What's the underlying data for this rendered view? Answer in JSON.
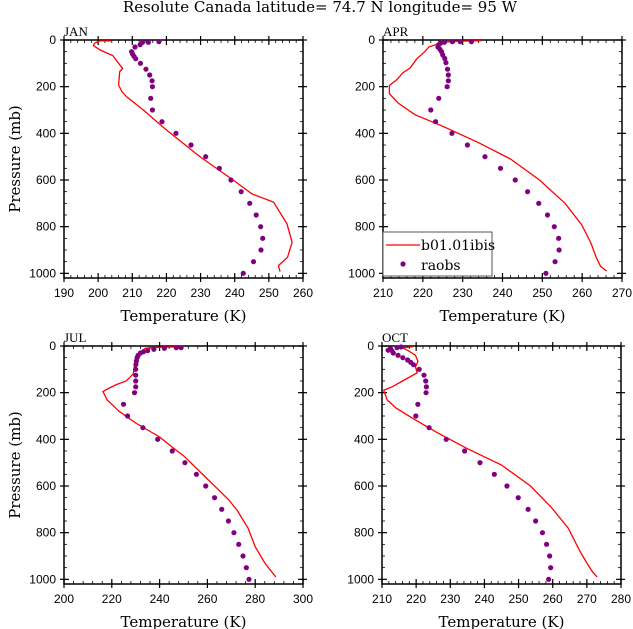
{
  "title": "Resolute Canada  latitude= 74.7 N longitude= 95 W",
  "colors": {
    "model": "#ff0000",
    "obs": "#800080"
  },
  "chart_data": [
    {
      "type": "line",
      "panel_title": "JAN",
      "xlabel": "Temperature (K)",
      "ylabel": "Pressure (mb)",
      "xlim": [
        190,
        260
      ],
      "xticks": [
        190,
        200,
        210,
        220,
        230,
        240,
        250,
        260
      ],
      "ylim": [
        0,
        1020
      ],
      "yticks": [
        0,
        200,
        400,
        600,
        800,
        1000
      ],
      "y_inverted": true,
      "series": [
        {
          "name": "b01.01ibis",
          "style": "line",
          "points": [
            [
              203.8,
              4
            ],
            [
              200.4,
              4
            ],
            [
              198.9,
              14
            ],
            [
              198.6,
              24
            ],
            [
              200.6,
              43
            ],
            [
              202.3,
              54
            ],
            [
              204.3,
              67
            ],
            [
              206,
              100
            ],
            [
              207.2,
              122
            ],
            [
              206.3,
              136
            ],
            [
              206,
              193
            ],
            [
              207,
              222
            ],
            [
              208.4,
              244
            ],
            [
              213.3,
              301
            ],
            [
              220.1,
              387
            ],
            [
              229.9,
              501
            ],
            [
              239.7,
              602
            ],
            [
              245,
              659
            ],
            [
              251.4,
              695
            ],
            [
              255.3,
              788
            ],
            [
              256.8,
              867
            ],
            [
              255.5,
              931
            ],
            [
              252.8,
              967
            ],
            [
              253.3,
              993
            ]
          ]
        },
        {
          "name": "raobs",
          "style": "markers",
          "points": [
            [
              217.8,
              7
            ],
            [
              214.7,
              10
            ],
            [
              213,
              10
            ],
            [
              212.3,
              20
            ],
            [
              210.8,
              30
            ],
            [
              209.8,
              50
            ],
            [
              210.1,
              60
            ],
            [
              210.5,
              70
            ],
            [
              211,
              80
            ],
            [
              212.4,
              100
            ],
            [
              214,
              125
            ],
            [
              215.1,
              150
            ],
            [
              215.8,
              175
            ],
            [
              215.9,
              200
            ],
            [
              215.4,
              250
            ],
            [
              215.9,
              300
            ],
            [
              218.7,
              350
            ],
            [
              222.8,
              400
            ],
            [
              227.2,
              450
            ],
            [
              231.5,
              500
            ],
            [
              235.5,
              550
            ],
            [
              238.9,
              600
            ],
            [
              241.9,
              650
            ],
            [
              244.4,
              700
            ],
            [
              246.3,
              750
            ],
            [
              247.6,
              800
            ],
            [
              248.2,
              850
            ],
            [
              247.7,
              900
            ],
            [
              245.5,
              950
            ],
            [
              242.5,
              1000
            ]
          ]
        }
      ]
    },
    {
      "type": "line",
      "panel_title": "APR",
      "xlabel": "Temperature (K)",
      "ylabel": "",
      "xlim": [
        210,
        270
      ],
      "xticks": [
        210,
        220,
        230,
        240,
        250,
        260,
        270
      ],
      "ylim": [
        0,
        1020
      ],
      "yticks": [
        0,
        200,
        400,
        600,
        800,
        1000
      ],
      "y_inverted": true,
      "legend": {
        "placement": "bottom-left",
        "entries": [
          "b01.01ibis",
          "raobs"
        ]
      },
      "series": [
        {
          "name": "b01.01ibis",
          "style": "line",
          "points": [
            [
              234.7,
              3
            ],
            [
              228,
              5
            ],
            [
              225,
              10
            ],
            [
              221.5,
              30
            ],
            [
              220.5,
              50
            ],
            [
              218.5,
              80
            ],
            [
              216.8,
              120
            ],
            [
              215,
              140
            ],
            [
              213.5,
              170
            ],
            [
              211.6,
              195
            ],
            [
              211.6,
              230
            ],
            [
              213.8,
              270
            ],
            [
              218,
              320
            ],
            [
              225,
              370
            ],
            [
              234,
              440
            ],
            [
              242,
              510
            ],
            [
              249.3,
              600
            ],
            [
              255.7,
              700
            ],
            [
              259.8,
              790
            ],
            [
              262.2,
              870
            ],
            [
              263.5,
              930
            ],
            [
              264.6,
              970
            ],
            [
              266.1,
              990
            ]
          ]
        },
        {
          "name": "raobs",
          "style": "markers",
          "points": [
            [
              232.2,
              7
            ],
            [
              229.4,
              7
            ],
            [
              227.4,
              7
            ],
            [
              225.4,
              10
            ],
            [
              224.4,
              14
            ],
            [
              224,
              20
            ],
            [
              223.8,
              30
            ],
            [
              224.3,
              40
            ],
            [
              224.7,
              50
            ],
            [
              225,
              64
            ],
            [
              225.5,
              79
            ],
            [
              225.8,
              97
            ],
            [
              226.2,
              125
            ],
            [
              226.4,
              150
            ],
            [
              226.4,
              175
            ],
            [
              226.1,
              200
            ],
            [
              224,
              250
            ],
            [
              222,
              300
            ],
            [
              223.2,
              350
            ],
            [
              227.3,
              400
            ],
            [
              231.2,
              450
            ],
            [
              235.6,
              500
            ],
            [
              239.5,
              550
            ],
            [
              243.2,
              600
            ],
            [
              246.3,
              650
            ],
            [
              249.1,
              700
            ],
            [
              251.3,
              750
            ],
            [
              253,
              800
            ],
            [
              254.1,
              850
            ],
            [
              254.2,
              900
            ],
            [
              253.2,
              950
            ],
            [
              250.9,
              1000
            ]
          ]
        }
      ]
    },
    {
      "type": "line",
      "panel_title": "JUL",
      "xlabel": "Temperature (K)",
      "ylabel": "Pressure (mb)",
      "xlim": [
        200,
        300
      ],
      "xticks": [
        200,
        220,
        240,
        260,
        280,
        300
      ],
      "ylim": [
        0,
        1020
      ],
      "yticks": [
        0,
        200,
        400,
        600,
        800,
        1000
      ],
      "y_inverted": true,
      "series": [
        {
          "name": "b01.01ibis",
          "style": "line",
          "points": [
            [
              250,
              3
            ],
            [
              240,
              5
            ],
            [
              234,
              10
            ],
            [
              231.5,
              30
            ],
            [
              230,
              60
            ],
            [
              229.5,
              80
            ],
            [
              229,
              120
            ],
            [
              226,
              150
            ],
            [
              222,
              165
            ],
            [
              219,
              180
            ],
            [
              216.3,
              195
            ],
            [
              218,
              230
            ],
            [
              223,
              280
            ],
            [
              230,
              330
            ],
            [
              240,
              390
            ],
            [
              245.5,
              435
            ],
            [
              250,
              470
            ],
            [
              254,
              510
            ],
            [
              260,
              570
            ],
            [
              264,
              610
            ],
            [
              269,
              660
            ],
            [
              272.5,
              705
            ],
            [
              277,
              780
            ],
            [
              280,
              860
            ],
            [
              284,
              930
            ],
            [
              288.6,
              990
            ]
          ]
        },
        {
          "name": "raobs",
          "style": "markers",
          "points": [
            [
              249,
              7
            ],
            [
              247,
              7
            ],
            [
              242,
              10
            ],
            [
              237.6,
              14
            ],
            [
              235,
              20
            ],
            [
              233.2,
              25
            ],
            [
              232,
              30
            ],
            [
              231,
              40
            ],
            [
              230.6,
              50
            ],
            [
              230.3,
              64
            ],
            [
              230.1,
              79
            ],
            [
              230,
              100
            ],
            [
              230,
              125
            ],
            [
              230,
              150
            ],
            [
              230,
              175
            ],
            [
              229.5,
              200
            ],
            [
              224.9,
              250
            ],
            [
              226.6,
              300
            ],
            [
              233,
              350
            ],
            [
              239.2,
              400
            ],
            [
              245.3,
              450
            ],
            [
              250.6,
              500
            ],
            [
              255.4,
              550
            ],
            [
              259.3,
              600
            ],
            [
              263,
              650
            ],
            [
              266,
              700
            ],
            [
              268.8,
              750
            ],
            [
              271.1,
              800
            ],
            [
              273.1,
              850
            ],
            [
              274.9,
              900
            ],
            [
              276.3,
              950
            ],
            [
              277.4,
              1000
            ]
          ]
        }
      ]
    },
    {
      "type": "line",
      "panel_title": "OCT",
      "xlabel": "Temperature (K)",
      "ylabel": "",
      "xlim": [
        210,
        280
      ],
      "xticks": [
        210,
        220,
        230,
        240,
        250,
        260,
        270,
        280
      ],
      "ylim": [
        0,
        1020
      ],
      "yticks": [
        0,
        200,
        400,
        600,
        800,
        1000
      ],
      "y_inverted": true,
      "series": [
        {
          "name": "b01.01ibis",
          "style": "line",
          "points": [
            [
              219,
              3
            ],
            [
              216,
              8
            ],
            [
              217.7,
              20
            ],
            [
              219.8,
              40
            ],
            [
              220.5,
              65
            ],
            [
              219.8,
              90
            ],
            [
              220.3,
              115
            ],
            [
              216,
              150
            ],
            [
              213,
              175
            ],
            [
              210.5,
              190
            ],
            [
              211.5,
              230
            ],
            [
              214,
              265
            ],
            [
              219,
              310
            ],
            [
              226,
              370
            ],
            [
              235,
              440
            ],
            [
              245,
              510
            ],
            [
              253.5,
              600
            ],
            [
              259.5,
              690
            ],
            [
              264.5,
              780
            ],
            [
              268,
              880
            ],
            [
              270,
              930
            ],
            [
              271.5,
              965
            ],
            [
              273,
              990
            ]
          ]
        },
        {
          "name": "raobs",
          "style": "markers",
          "points": [
            [
              215.6,
              4
            ],
            [
              214.4,
              7
            ],
            [
              212.5,
              12
            ],
            [
              211.8,
              18
            ],
            [
              212.9,
              20
            ],
            [
              213.3,
              30
            ],
            [
              214.7,
              40
            ],
            [
              216.1,
              50
            ],
            [
              217.5,
              60
            ],
            [
              218.4,
              70
            ],
            [
              219.2,
              80
            ],
            [
              220.9,
              100
            ],
            [
              222.3,
              125
            ],
            [
              222.8,
              150
            ],
            [
              223,
              175
            ],
            [
              222.9,
              200
            ],
            [
              220.5,
              250
            ],
            [
              219.9,
              300
            ],
            [
              223.8,
              350
            ],
            [
              228.8,
              400
            ],
            [
              234.2,
              450
            ],
            [
              238.7,
              500
            ],
            [
              242.9,
              550
            ],
            [
              246.6,
              600
            ],
            [
              249.9,
              650
            ],
            [
              252.8,
              700
            ],
            [
              255,
              750
            ],
            [
              257,
              800
            ],
            [
              258.2,
              850
            ],
            [
              259.1,
              900
            ],
            [
              259.4,
              950
            ],
            [
              258.8,
              1000
            ]
          ]
        }
      ]
    }
  ]
}
